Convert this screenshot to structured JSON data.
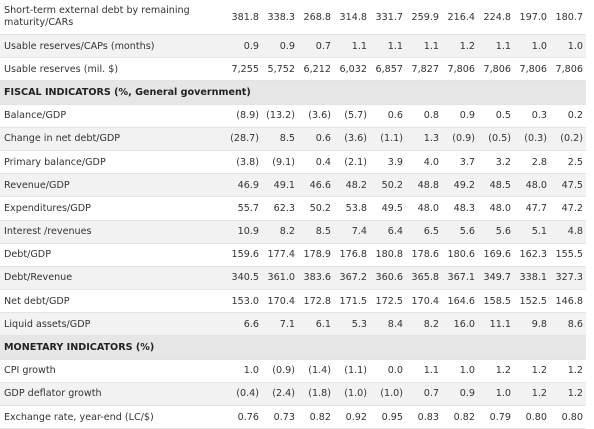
{
  "sections": [
    {
      "title": "",
      "rows": [
        {
          "label": "Short-term external debt by remaining maturity/CARs",
          "values": [
            "381.8",
            "338.3",
            "268.8",
            "314.8",
            "331.7",
            "259.9",
            "216.4",
            "224.8",
            "197.0",
            "180.7"
          ]
        },
        {
          "label": "Usable reserves/CAPs (months)",
          "values": [
            "0.9",
            "0.9",
            "0.7",
            "1.1",
            "1.1",
            "1.1",
            "1.2",
            "1.1",
            "1.0",
            "1.0"
          ]
        },
        {
          "label": "Usable reserves (mil. $)",
          "values": [
            "7,255",
            "5,752",
            "6,212",
            "6,032",
            "6,857",
            "7,827",
            "7,806",
            "7,806",
            "7,806",
            "7,806"
          ]
        }
      ]
    },
    {
      "title": "FISCAL INDICATORS (%, General government)",
      "rows": [
        {
          "label": "Balance/GDP",
          "values": [
            "(8.9)",
            "(13.2)",
            "(3.6)",
            "(5.7)",
            "0.6",
            "0.8",
            "0.9",
            "0.5",
            "0.3",
            "0.2"
          ]
        },
        {
          "label": "Change in net debt/GDP",
          "values": [
            "(28.7)",
            "8.5",
            "0.6",
            "(3.6)",
            "(1.1)",
            "1.3",
            "(0.9)",
            "(0.5)",
            "(0.3)",
            "(0.2)"
          ]
        },
        {
          "label": "Primary balance/GDP",
          "values": [
            "(3.8)",
            "(9.1)",
            "0.4",
            "(2.1)",
            "3.9",
            "4.0",
            "3.7",
            "3.2",
            "2.8",
            "2.5"
          ]
        },
        {
          "label": "Revenue/GDP",
          "values": [
            "46.9",
            "49.1",
            "46.6",
            "48.2",
            "50.2",
            "48.8",
            "49.2",
            "48.5",
            "48.0",
            "47.5"
          ]
        },
        {
          "label": "Expenditures/GDP",
          "values": [
            "55.7",
            "62.3",
            "50.2",
            "53.8",
            "49.5",
            "48.0",
            "48.3",
            "48.0",
            "47.7",
            "47.2"
          ]
        },
        {
          "label": "Interest /revenues",
          "values": [
            "10.9",
            "8.2",
            "8.5",
            "7.4",
            "6.4",
            "6.5",
            "5.6",
            "5.6",
            "5.1",
            "4.8"
          ]
        },
        {
          "label": "Debt/GDP",
          "values": [
            "159.6",
            "177.4",
            "178.9",
            "176.8",
            "180.8",
            "178.6",
            "180.6",
            "169.6",
            "162.3",
            "155.5"
          ]
        },
        {
          "label": "Debt/Revenue",
          "values": [
            "340.5",
            "361.0",
            "383.6",
            "367.2",
            "360.6",
            "365.8",
            "367.1",
            "349.7",
            "338.1",
            "327.3"
          ]
        },
        {
          "label": "Net debt/GDP",
          "values": [
            "153.0",
            "170.4",
            "172.8",
            "171.5",
            "172.5",
            "170.4",
            "164.6",
            "158.5",
            "152.5",
            "146.8"
          ]
        },
        {
          "label": "Liquid assets/GDP",
          "values": [
            "6.6",
            "7.1",
            "6.1",
            "5.3",
            "8.4",
            "8.2",
            "16.0",
            "11.1",
            "9.8",
            "8.6"
          ]
        }
      ]
    },
    {
      "title": "MONETARY INDICATORS (%)",
      "rows": [
        {
          "label": "CPI growth",
          "values": [
            "1.0",
            "(0.9)",
            "(1.4)",
            "(1.1)",
            "0.0",
            "1.1",
            "1.0",
            "1.2",
            "1.2",
            "1.2"
          ]
        },
        {
          "label": "GDP deflator growth",
          "values": [
            "(0.4)",
            "(2.4)",
            "(1.8)",
            "(1.0)",
            "(1.0)",
            "0.7",
            "0.9",
            "1.0",
            "1.2",
            "1.2"
          ]
        },
        {
          "label": "Exchange rate, year-end (LC/$)",
          "values": [
            "0.76",
            "0.73",
            "0.82",
            "0.92",
            "0.95",
            "0.83",
            "0.82",
            "0.79",
            "0.80",
            "0.80"
          ]
        }
      ]
    }
  ]
}
